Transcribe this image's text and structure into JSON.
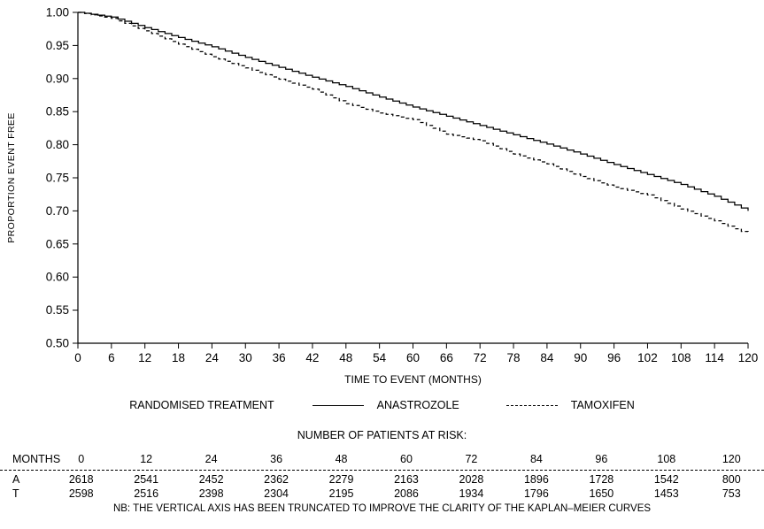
{
  "chart_data": {
    "type": "line",
    "title": "",
    "xlabel": "TIME TO EVENT (MONTHS)",
    "ylabel": "PROPORTION EVENT FREE",
    "xlim": [
      0,
      120
    ],
    "ylim": [
      0.5,
      1.0
    ],
    "grid": false,
    "legend_title": "RANDOMISED TREATMENT",
    "legend_position": "bottom",
    "x_ticks": [
      0,
      6,
      12,
      18,
      24,
      30,
      36,
      42,
      48,
      54,
      60,
      66,
      72,
      78,
      84,
      90,
      96,
      102,
      108,
      114,
      120
    ],
    "y_ticks": [
      1.0,
      0.95,
      0.9,
      0.85,
      0.8,
      0.75,
      0.7,
      0.65,
      0.6,
      0.55,
      0.5
    ],
    "x": [
      0,
      6,
      12,
      18,
      24,
      30,
      36,
      42,
      48,
      54,
      60,
      66,
      72,
      78,
      84,
      90,
      96,
      102,
      108,
      114,
      120
    ],
    "series": [
      {
        "name": "ANASTROZOLE",
        "style": "solid",
        "values": [
          1.0,
          0.993,
          0.977,
          0.962,
          0.948,
          0.932,
          0.917,
          0.902,
          0.888,
          0.872,
          0.857,
          0.843,
          0.829,
          0.815,
          0.801,
          0.786,
          0.77,
          0.755,
          0.74,
          0.722,
          0.7
        ]
      },
      {
        "name": "TAMOXIFEN",
        "style": "dashed",
        "values": [
          1.0,
          0.991,
          0.972,
          0.952,
          0.933,
          0.916,
          0.899,
          0.884,
          0.862,
          0.848,
          0.838,
          0.816,
          0.806,
          0.786,
          0.771,
          0.752,
          0.736,
          0.724,
          0.703,
          0.685,
          0.665
        ]
      }
    ]
  },
  "risk_table": {
    "title": "NUMBER OF PATIENTS AT RISK:",
    "months_label": "MONTHS",
    "months": [
      "0",
      "12",
      "24",
      "36",
      "48",
      "60",
      "72",
      "84",
      "96",
      "108",
      "120"
    ],
    "rows": [
      {
        "label": "A",
        "values": [
          "2618",
          "2541",
          "2452",
          "2362",
          "2279",
          "2163",
          "2028",
          "1896",
          "1728",
          "1542",
          "800"
        ]
      },
      {
        "label": "T",
        "values": [
          "2598",
          "2516",
          "2398",
          "2304",
          "2195",
          "2086",
          "1934",
          "1796",
          "1650",
          "1453",
          "753"
        ]
      }
    ]
  },
  "footnote": "NB: THE VERTICAL AXIS HAS BEEN TRUNCATED TO IMPROVE THE CLARITY OF THE KAPLAN–MEIER CURVES"
}
